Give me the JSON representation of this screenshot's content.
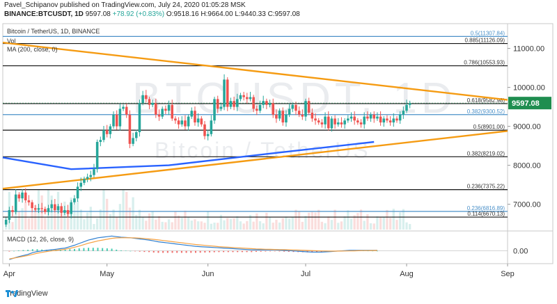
{
  "header": {
    "line1": "Pavel_Schipanov published on TradingView.com, July 24, 2020 01:05:28 MSK",
    "symbol": "BINANCE:BTCUSDT, 1D",
    "last": "9597.08",
    "change": "+78.92 (+0.83%)",
    "ohlc": "O:9518.16 H:9664.00 L:9440.33 C:9597.08"
  },
  "legend": {
    "title": "Bitcoin / TetherUS, 1D, BINANCE",
    "vol": "Vol",
    "ma": "MA (200, close, 0)",
    "macd": "MACD (12, 26, close, 9)"
  },
  "watermark": {
    "symbol": "BTCUSDT, 1D",
    "name": "Bitcoin / TetherUS"
  },
  "footer": {
    "brand": "TradingView"
  },
  "colors": {
    "up": "#26a69a",
    "down": "#ef5350",
    "ma": "#2962ff",
    "trend": "#f59b12",
    "fibBlue": "#4a90c8",
    "channel": "#3cd93c",
    "lastPrice": "#1f8e50",
    "macd": "#2f7fd0",
    "signal": "#f5a142"
  },
  "chart_data": {
    "type": "candlestick",
    "symbol": "BTCUSDT",
    "interval": "1D",
    "exchange": "BINANCE",
    "ylim": [
      6350,
      11600
    ],
    "y_ticks": [
      7000,
      8000,
      9000,
      10000,
      11000
    ],
    "y_tick_labels": [
      "7000.00",
      "8000.00",
      "9000.00",
      "10000.00",
      "11000.00"
    ],
    "x_ticks": [
      {
        "date": "2020-04-01",
        "label": "Apr"
      },
      {
        "date": "2020-05-01",
        "label": "May"
      },
      {
        "date": "2020-06-01",
        "label": "Jun"
      },
      {
        "date": "2020-07-01",
        "label": "Jul"
      },
      {
        "date": "2020-08-01",
        "label": "Aug"
      },
      {
        "date": "2020-09-01",
        "label": "Sep"
      }
    ],
    "xlim": [
      "2020-03-30",
      "2020-09-01"
    ],
    "last_price": 9597.08,
    "last_price_label": "9597.08",
    "closes": [
      6600,
      6850,
      6800,
      7250,
      7150,
      7300,
      7100,
      7050,
      6900,
      6860,
      6900,
      6880,
      6800,
      6900,
      7000,
      6850,
      6950,
      6780,
      6850,
      6750,
      7050,
      7150,
      7450,
      7550,
      7650,
      7700,
      7750,
      7900,
      8600,
      8650,
      8900,
      8800,
      9000,
      9300,
      9000,
      9450,
      9500,
      9300,
      8550,
      8700,
      8850,
      9600,
      9800,
      9700,
      9550,
      9600,
      9300,
      9250,
      9450,
      9400,
      9550,
      9200,
      9150,
      9050,
      9150,
      9000,
      9250,
      9400,
      9100,
      9200,
      9050,
      8750,
      8800,
      9150,
      9700,
      9450,
      9500,
      10200,
      9500,
      9650,
      9500,
      9700,
      9800,
      9750,
      9700,
      9750,
      9450,
      9400,
      9550,
      9650,
      9550,
      9600,
      9300,
      9200,
      9400,
      9100,
      9300,
      9450,
      9550,
      9400,
      9300,
      9250,
      9650,
      9350,
      9200,
      9150,
      9100,
      9050,
      9250,
      8950,
      9200,
      9050,
      9100,
      9050,
      9150,
      9200,
      9250,
      9150,
      9100,
      9050,
      9250,
      9200,
      9300,
      9200,
      9250,
      9100,
      9200,
      9150,
      9100,
      9200,
      9150,
      9300,
      9400,
      9550,
      9597
    ],
    "fib_levels": [
      {
        "label": "0.5(11307.84)",
        "value": 11307.84,
        "style": "blue"
      },
      {
        "label": "0.885(11126.09)",
        "value": 11126.09,
        "style": "black"
      },
      {
        "label": "0.786(10553.93)",
        "value": 10553.93,
        "style": "black"
      },
      {
        "label": "0.618(9582.98)",
        "value": 9582.98,
        "style": "black"
      },
      {
        "label": "0.382(9300.52)",
        "value": 9300.52,
        "style": "blue"
      },
      {
        "label": "0.5(8901.00)",
        "value": 8901.0,
        "style": "black"
      },
      {
        "label": "0.382(8219.02)",
        "value": 8219.02,
        "style": "black"
      },
      {
        "label": "0.236(7375.22)",
        "value": 7375.22,
        "style": "black"
      },
      {
        "label": "0.236(6816.89)",
        "value": 6816.89,
        "style": "blue"
      },
      {
        "label": "0.114(6670.13)",
        "value": 6670.13,
        "style": "black"
      }
    ],
    "ma200": [
      {
        "date": "2020-03-30",
        "value": 8200
      },
      {
        "date": "2020-04-20",
        "value": 7900
      },
      {
        "date": "2020-05-20",
        "value": 8000
      },
      {
        "date": "2020-06-20",
        "value": 8300
      },
      {
        "date": "2020-07-22",
        "value": 8600
      }
    ],
    "trendlines": [
      {
        "from": {
          "date": "2020-03-30",
          "value": 11150
        },
        "to": {
          "date": "2020-09-01",
          "value": 9680
        }
      },
      {
        "from": {
          "date": "2020-03-30",
          "value": 7400
        },
        "to": {
          "date": "2020-09-01",
          "value": 8880
        }
      }
    ],
    "macd_ylim": [
      -420,
      650
    ],
    "macd_tick": "0.00",
    "macd_series": [
      -300,
      -250,
      -200,
      -160,
      -120,
      -60,
      -20,
      0,
      20,
      40,
      60,
      80,
      100,
      150,
      200,
      260,
      320,
      380,
      420,
      460,
      480,
      500,
      520,
      500,
      480,
      470,
      460,
      440,
      420,
      400,
      380,
      350,
      320,
      300,
      280,
      260,
      240,
      220,
      200,
      180,
      160,
      150,
      140,
      130,
      120,
      110,
      100,
      90,
      80,
      70,
      60,
      50,
      40,
      40,
      40,
      40,
      40,
      40,
      30,
      20,
      10,
      0,
      -10,
      -20,
      -30,
      -40,
      -40,
      -40,
      -30,
      -20,
      -10,
      0,
      10,
      20,
      20,
      20,
      20,
      20,
      20,
      20
    ],
    "signal_series": [
      -280,
      -250,
      -220,
      -190,
      -160,
      -120,
      -80,
      -50,
      -20,
      0,
      20,
      40,
      60,
      90,
      130,
      170,
      220,
      270,
      310,
      350,
      380,
      410,
      440,
      455,
      460,
      462,
      460,
      455,
      445,
      435,
      420,
      405,
      385,
      365,
      345,
      325,
      305,
      285,
      265,
      245,
      225,
      210,
      195,
      180,
      165,
      150,
      140,
      130,
      120,
      110,
      100,
      90,
      80,
      72,
      66,
      60,
      56,
      52,
      48,
      44,
      40,
      35,
      30,
      24,
      18,
      12,
      6,
      0,
      -4,
      -6,
      -6,
      -4,
      -2,
      0,
      4,
      8,
      12,
      14,
      16,
      18
    ]
  }
}
